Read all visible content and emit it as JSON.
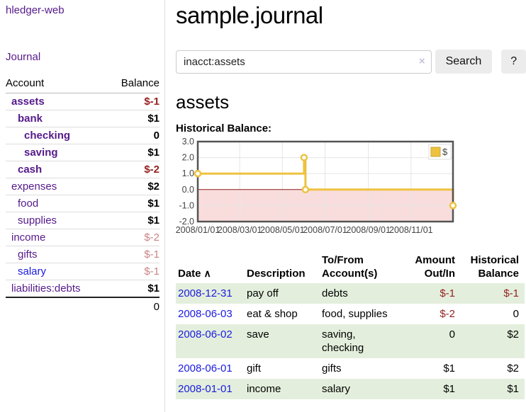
{
  "colors": {
    "link_purple": "#551a8b",
    "link_blue": "#1b1be0",
    "negative_strong": "#942222",
    "negative_soft": "#c98484",
    "row_stripe_green": "#e3efdc",
    "chart_gold": "#edc240",
    "chart_negative_region": "#f9dddd",
    "chart_zero_line": "#8b1a1a",
    "chart_border": "#545454",
    "chart_grid": "#e5e5e5"
  },
  "sidebar": {
    "brand": "hledger-web",
    "journal_label": "Journal",
    "accounts_table": {
      "headers": {
        "account": "Account",
        "balance": "Balance"
      },
      "rows": [
        {
          "name": "assets",
          "balance": "$-1",
          "level": 1,
          "bold": true,
          "name_style": "purple",
          "balance_style": "neg-strong"
        },
        {
          "name": "bank",
          "balance": "$1",
          "level": 2,
          "bold": true,
          "name_style": "purple",
          "balance_style": "normal"
        },
        {
          "name": "checking",
          "balance": "0",
          "level": 3,
          "bold": true,
          "name_style": "purple",
          "balance_style": "normal"
        },
        {
          "name": "saving",
          "balance": "$1",
          "level": 3,
          "bold": true,
          "name_style": "purple",
          "balance_style": "normal"
        },
        {
          "name": "cash",
          "balance": "$-2",
          "level": 2,
          "bold": true,
          "name_style": "purple",
          "balance_style": "neg-strong"
        },
        {
          "name": "expenses",
          "balance": "$2",
          "level": 1,
          "bold": false,
          "name_style": "purple",
          "balance_style": "normal"
        },
        {
          "name": "food",
          "balance": "$1",
          "level": 2,
          "bold": false,
          "name_style": "purple",
          "balance_style": "normal"
        },
        {
          "name": "supplies",
          "balance": "$1",
          "level": 2,
          "bold": false,
          "name_style": "purple",
          "balance_style": "normal"
        },
        {
          "name": "income",
          "balance": "$-2",
          "level": 1,
          "bold": false,
          "name_style": "purple",
          "balance_style": "neg-soft"
        },
        {
          "name": "gifts",
          "balance": "$-1",
          "level": 2,
          "bold": false,
          "name_style": "purple",
          "balance_style": "neg-soft"
        },
        {
          "name": "salary",
          "balance": "$-1",
          "level": 2,
          "bold": false,
          "name_style": "blue",
          "balance_style": "neg-soft"
        },
        {
          "name": "liabilities:debts",
          "balance": "$1",
          "level": 1,
          "bold": false,
          "name_style": "purple",
          "balance_style": "normal"
        }
      ],
      "total": "0"
    }
  },
  "header": {
    "title": "sample.journal"
  },
  "search": {
    "value": "inacct:assets",
    "clear_icon": "×",
    "button_label": "Search",
    "help_label": "?"
  },
  "register": {
    "heading": "assets",
    "chart_label": "Historical Balance:"
  },
  "chart_data": {
    "type": "line",
    "style": "step",
    "title": "Historical Balance",
    "legend": "$",
    "legend_position": "top-right",
    "grid": true,
    "ylim": [
      -2,
      3
    ],
    "yticks": [
      {
        "value": 3,
        "label": "3.0"
      },
      {
        "value": 2,
        "label": "2.0"
      },
      {
        "value": 1,
        "label": "1.0"
      },
      {
        "value": 0,
        "label": "0.0"
      },
      {
        "value": -1,
        "label": "-1.0"
      },
      {
        "value": -2,
        "label": "-2.0"
      }
    ],
    "xdomain": [
      "2008-01-01",
      "2008-12-31"
    ],
    "xticks": [
      {
        "date": "2008-01-01",
        "label": "2008/01/01"
      },
      {
        "date": "2008-03-01",
        "label": "2008/03/01"
      },
      {
        "date": "2008-05-01",
        "label": "2008/05/01"
      },
      {
        "date": "2008-07-01",
        "label": "2008/07/01"
      },
      {
        "date": "2008-09-01",
        "label": "2008/09/01"
      },
      {
        "date": "2008-11-01",
        "label": "2008/11/01"
      }
    ],
    "series": [
      {
        "name": "$",
        "color": "#edc240",
        "points": [
          {
            "date": "2008-01-01",
            "value": 1
          },
          {
            "date": "2008-06-01",
            "value": 2
          },
          {
            "date": "2008-06-03",
            "value": 0
          },
          {
            "date": "2008-12-31",
            "value": -1
          }
        ]
      }
    ]
  },
  "transactions": {
    "headers": {
      "date": "Date",
      "sort_icon": "∧",
      "description": "Description",
      "account": "To/From\nAccount(s)",
      "amount": "Amount\nOut/In",
      "balance": "Historical\nBalance"
    },
    "rows": [
      {
        "date": "2008-12-31",
        "description": "pay off",
        "account": "debts",
        "amount": "$-1",
        "amount_negative": true,
        "balance": "$-1",
        "balance_negative": true,
        "stripe": true
      },
      {
        "date": "2008-06-03",
        "description": "eat & shop",
        "account": "food, supplies",
        "amount": "$-2",
        "amount_negative": true,
        "balance": "0",
        "balance_negative": false,
        "stripe": false
      },
      {
        "date": "2008-06-02",
        "description": "save",
        "account": "saving,\nchecking",
        "amount": "0",
        "amount_negative": false,
        "balance": "$2",
        "balance_negative": false,
        "stripe": true
      },
      {
        "date": "2008-06-01",
        "description": "gift",
        "account": "gifts",
        "amount": "$1",
        "amount_negative": false,
        "balance": "$2",
        "balance_negative": false,
        "stripe": false
      },
      {
        "date": "2008-01-01",
        "description": "income",
        "account": "salary",
        "amount": "$1",
        "amount_negative": false,
        "balance": "$1",
        "balance_negative": false,
        "stripe": true
      }
    ]
  }
}
